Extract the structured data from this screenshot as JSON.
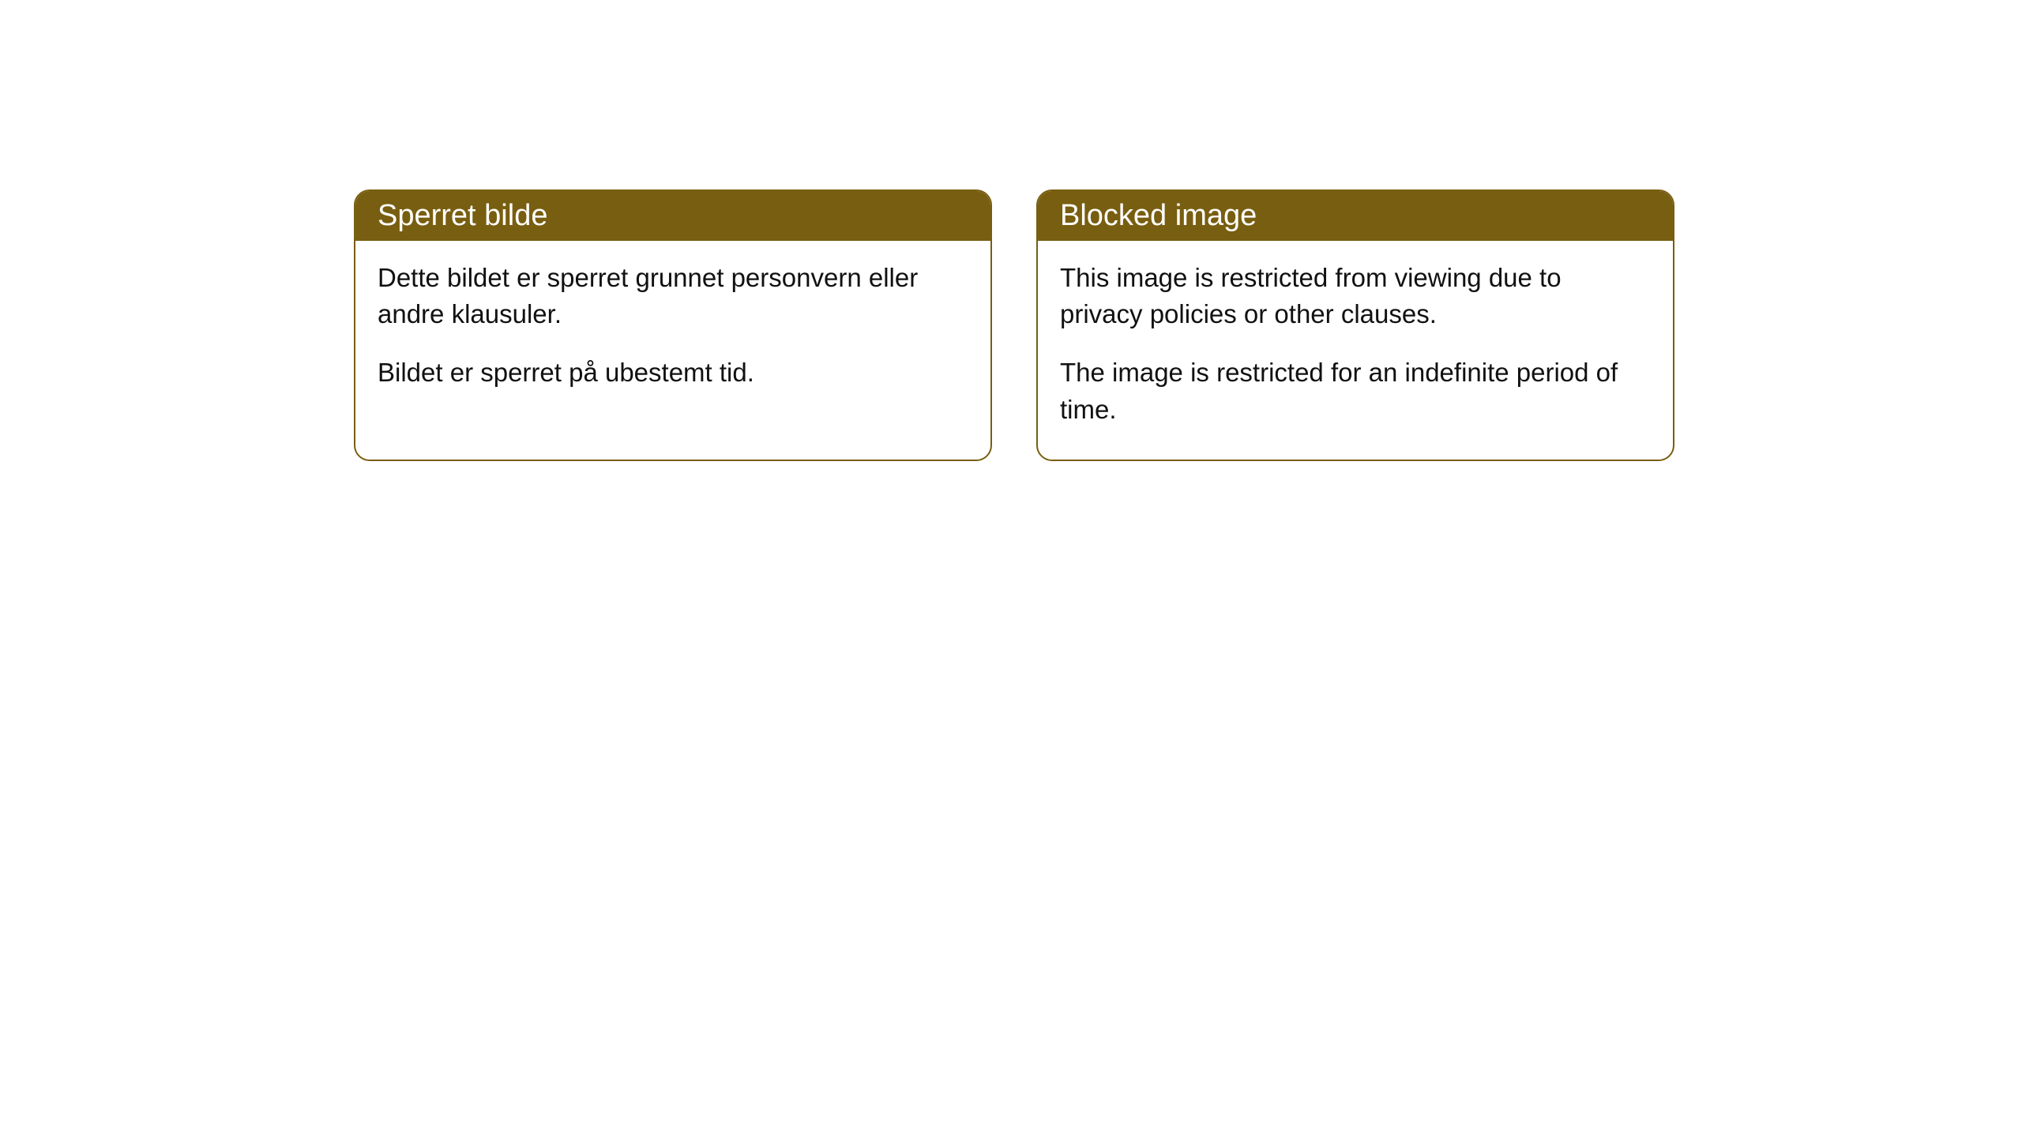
{
  "cards": [
    {
      "title": "Sperret bilde",
      "paragraph1": "Dette bildet er sperret grunnet personvern eller andre klausuler.",
      "paragraph2": "Bildet er sperret på ubestemt tid."
    },
    {
      "title": "Blocked image",
      "paragraph1": "This image is restricted from viewing due to privacy policies or other clauses.",
      "paragraph2": "The image is restricted for an indefinite period of time."
    }
  ],
  "style": {
    "header_background": "#785e10",
    "header_text_color": "#ffffff",
    "border_color": "#785e10",
    "body_text_color": "#111111",
    "card_background": "#ffffff",
    "page_background": "#ffffff",
    "border_radius": 20,
    "header_fontsize": 38,
    "body_fontsize": 33
  }
}
